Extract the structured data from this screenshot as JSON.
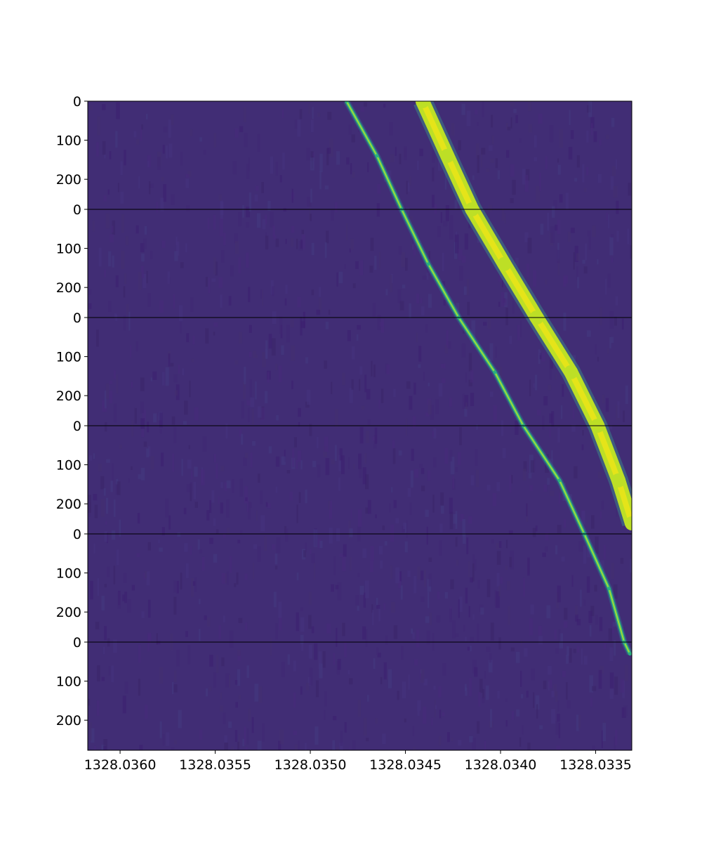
{
  "chart_data": {
    "type": "heatmap",
    "title": "",
    "xlabel": "",
    "ylabel": "",
    "colormap": "viridis",
    "panels": 6,
    "panel_row_range": [
      0,
      277
    ],
    "panel_ytick_labels": [
      "0",
      "100",
      "200"
    ],
    "panel_ytick_values": [
      0,
      100,
      200
    ],
    "xlim": [
      1328.03617,
      1328.03331
    ],
    "x_axis_reversed": true,
    "xticks": [
      1328.036,
      1328.0355,
      1328.035,
      1328.0345,
      1328.034,
      1328.0335
    ],
    "xtick_labels": [
      "1328.0360",
      "1328.0355",
      "1328.0350",
      "1328.0345",
      "1328.0340",
      "1328.0335"
    ],
    "series": [
      {
        "track": "narrow",
        "points": [
          {
            "panel": 0,
            "row": 0,
            "x": 1328.03481
          },
          {
            "panel": 0,
            "row": 140,
            "x": 1328.03465
          },
          {
            "panel": 0,
            "row": 277,
            "x": 1328.03452
          },
          {
            "panel": 1,
            "row": 140,
            "x": 1328.03438
          },
          {
            "panel": 1,
            "row": 277,
            "x": 1328.03422
          },
          {
            "panel": 2,
            "row": 140,
            "x": 1328.03403
          },
          {
            "panel": 2,
            "row": 277,
            "x": 1328.03388
          },
          {
            "panel": 3,
            "row": 140,
            "x": 1328.03369
          },
          {
            "panel": 3,
            "row": 277,
            "x": 1328.03356
          },
          {
            "panel": 4,
            "row": 140,
            "x": 1328.03343
          },
          {
            "panel": 4,
            "row": 277,
            "x": 1328.03335
          },
          {
            "panel": 5,
            "row": 30,
            "x": 1328.03332
          }
        ]
      },
      {
        "track": "broad",
        "points": [
          {
            "panel": 0,
            "row": 0,
            "x": 1328.03441
          },
          {
            "panel": 0,
            "row": 140,
            "x": 1328.03428
          },
          {
            "panel": 0,
            "row": 277,
            "x": 1328.03415
          },
          {
            "panel": 1,
            "row": 140,
            "x": 1328.03398
          },
          {
            "panel": 1,
            "row": 277,
            "x": 1328.03381
          },
          {
            "panel": 2,
            "row": 140,
            "x": 1328.03363
          },
          {
            "panel": 2,
            "row": 277,
            "x": 1328.03349
          },
          {
            "panel": 3,
            "row": 140,
            "x": 1328.03338
          },
          {
            "panel": 3,
            "row": 250,
            "x": 1328.03331
          }
        ]
      }
    ],
    "grid": false,
    "legend": "none"
  }
}
